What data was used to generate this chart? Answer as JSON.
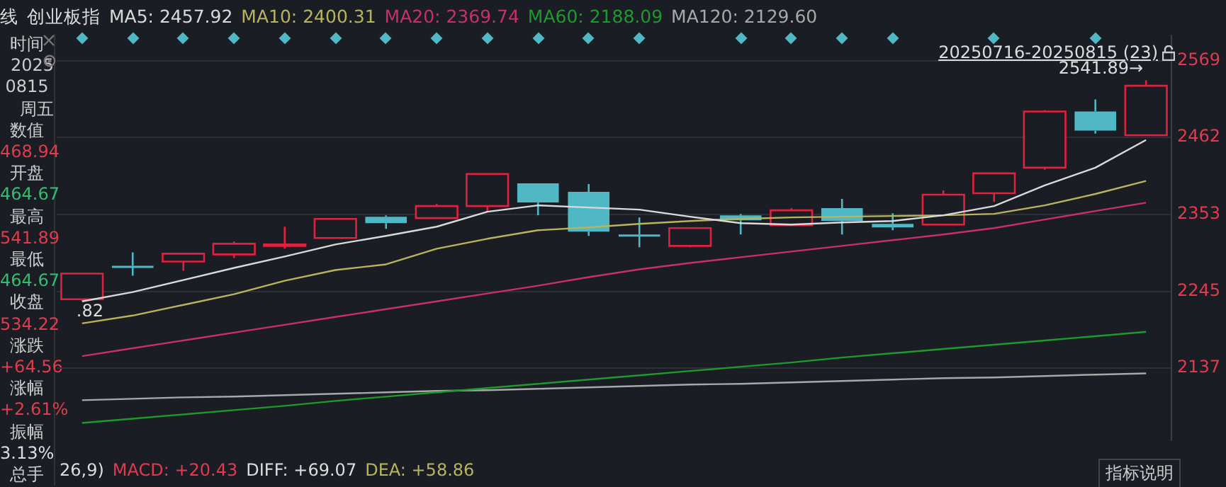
{
  "chart_data": {
    "type": "candlestick",
    "title": "创业板指",
    "categories": [
      null,
      null,
      null,
      null,
      null,
      null,
      null,
      null,
      null,
      null,
      null,
      null,
      null,
      null,
      null,
      null,
      null,
      null,
      null,
      null,
      null,
      null
    ],
    "ohlc": [
      [
        2234,
        2270,
        2232,
        2270
      ],
      [
        2281,
        2300,
        2267,
        2280
      ],
      [
        2287,
        2298,
        2274,
        2298
      ],
      [
        2297,
        2315,
        2292,
        2312
      ],
      [
        2310,
        2336,
        2305,
        2311
      ],
      [
        2320,
        2347,
        2320,
        2347
      ],
      [
        2350,
        2352,
        2333,
        2341
      ],
      [
        2348,
        2368,
        2348,
        2365
      ],
      [
        2365,
        2410,
        2357,
        2410
      ],
      [
        2397,
        2397,
        2352,
        2370
      ],
      [
        2385,
        2396,
        2323,
        2329
      ],
      [
        2325,
        2349,
        2307,
        2324
      ],
      [
        2309,
        2334,
        2307,
        2334
      ],
      [
        2352,
        2354,
        2325,
        2345
      ],
      [
        2338,
        2362,
        2338,
        2359
      ],
      [
        2362,
        2375,
        2325,
        2344
      ],
      [
        2340,
        2355,
        2331,
        2335
      ],
      [
        2339,
        2387,
        2339,
        2381
      ],
      [
        2383,
        2411,
        2371,
        2411
      ],
      [
        2419,
        2500,
        2416,
        2498
      ],
      [
        2498,
        2515,
        2467,
        2471
      ],
      [
        2464.67,
        2541.89,
        2464.67,
        2534.22
      ]
    ],
    "series": [
      {
        "name": "MA5: 2457.92",
        "type": "line",
        "color": "#d9d9d9",
        "values": [
          2231,
          2244,
          2261,
          2278,
          2294,
          2311,
          2323,
          2336,
          2357,
          2366,
          2363,
          2360,
          2350,
          2341,
          2339,
          2342,
          2344,
          2352,
          2365,
          2394,
          2419,
          2457.92
        ]
      },
      {
        "name": "MA10: 2400.31",
        "type": "line",
        "color": "#b8b45e",
        "values": [
          2200,
          2211,
          2226,
          2241,
          2260,
          2275,
          2283,
          2305,
          2319,
          2331,
          2335,
          2340,
          2344,
          2347,
          2349,
          2350,
          2351,
          2352,
          2354,
          2366,
          2382,
          2400.31
        ]
      },
      {
        "name": "MA20: 2369.74",
        "type": "line",
        "color": "#c9306a",
        "values": [
          2154,
          2165,
          2176,
          2187,
          2198,
          2209,
          2220,
          2231,
          2242,
          2253,
          2265,
          2276,
          2285,
          2293,
          2301,
          2309,
          2317,
          2325,
          2334,
          2346,
          2358,
          2369.74
        ]
      },
      {
        "name": "MA60: 2188.09",
        "type": "line",
        "color": "#1e9a2c",
        "values": [
          2060,
          2066,
          2072,
          2078,
          2084,
          2091,
          2097,
          2103,
          2109,
          2115,
          2121,
          2127,
          2133,
          2139,
          2145,
          2152,
          2158,
          2164,
          2170,
          2176,
          2182,
          2188.09
        ]
      },
      {
        "name": "MA120: 2129.60",
        "type": "line",
        "color": "#a8a8a8",
        "values": [
          2092,
          2094,
          2096,
          2097,
          2099,
          2101,
          2103,
          2105,
          2106,
          2108,
          2110,
          2112,
          2114,
          2115,
          2117,
          2119,
          2121,
          2123,
          2124,
          2126,
          2128,
          2129.6
        ]
      }
    ],
    "ylim": [
      2036,
      2605
    ],
    "yticks": [
      2137,
      2245,
      2353,
      2462,
      2569
    ],
    "grid": "y",
    "legend": "top left",
    "tick_labels": "y",
    "annotations": [
      "时间",
      "2025",
      "0815",
      "周五",
      "数值",
      "468.94",
      "开盘",
      "464.67",
      "最高",
      "541.89",
      "最低",
      "464.67",
      "收盘",
      "534.22",
      "涨跌",
      "+64.56",
      "涨幅",
      "+2.61%",
      "振幅",
      "3.13%",
      "总手",
      "线",
      "20250716-20250815 (23)",
      "26,9)",
      "MACD: +20.43",
      "DIFF: +69.07",
      "DEA: +58.86",
      "指标说明",
      "2541.89→",
      {
        "text": ".82",
        "y": 2232
      }
    ]
  }
}
